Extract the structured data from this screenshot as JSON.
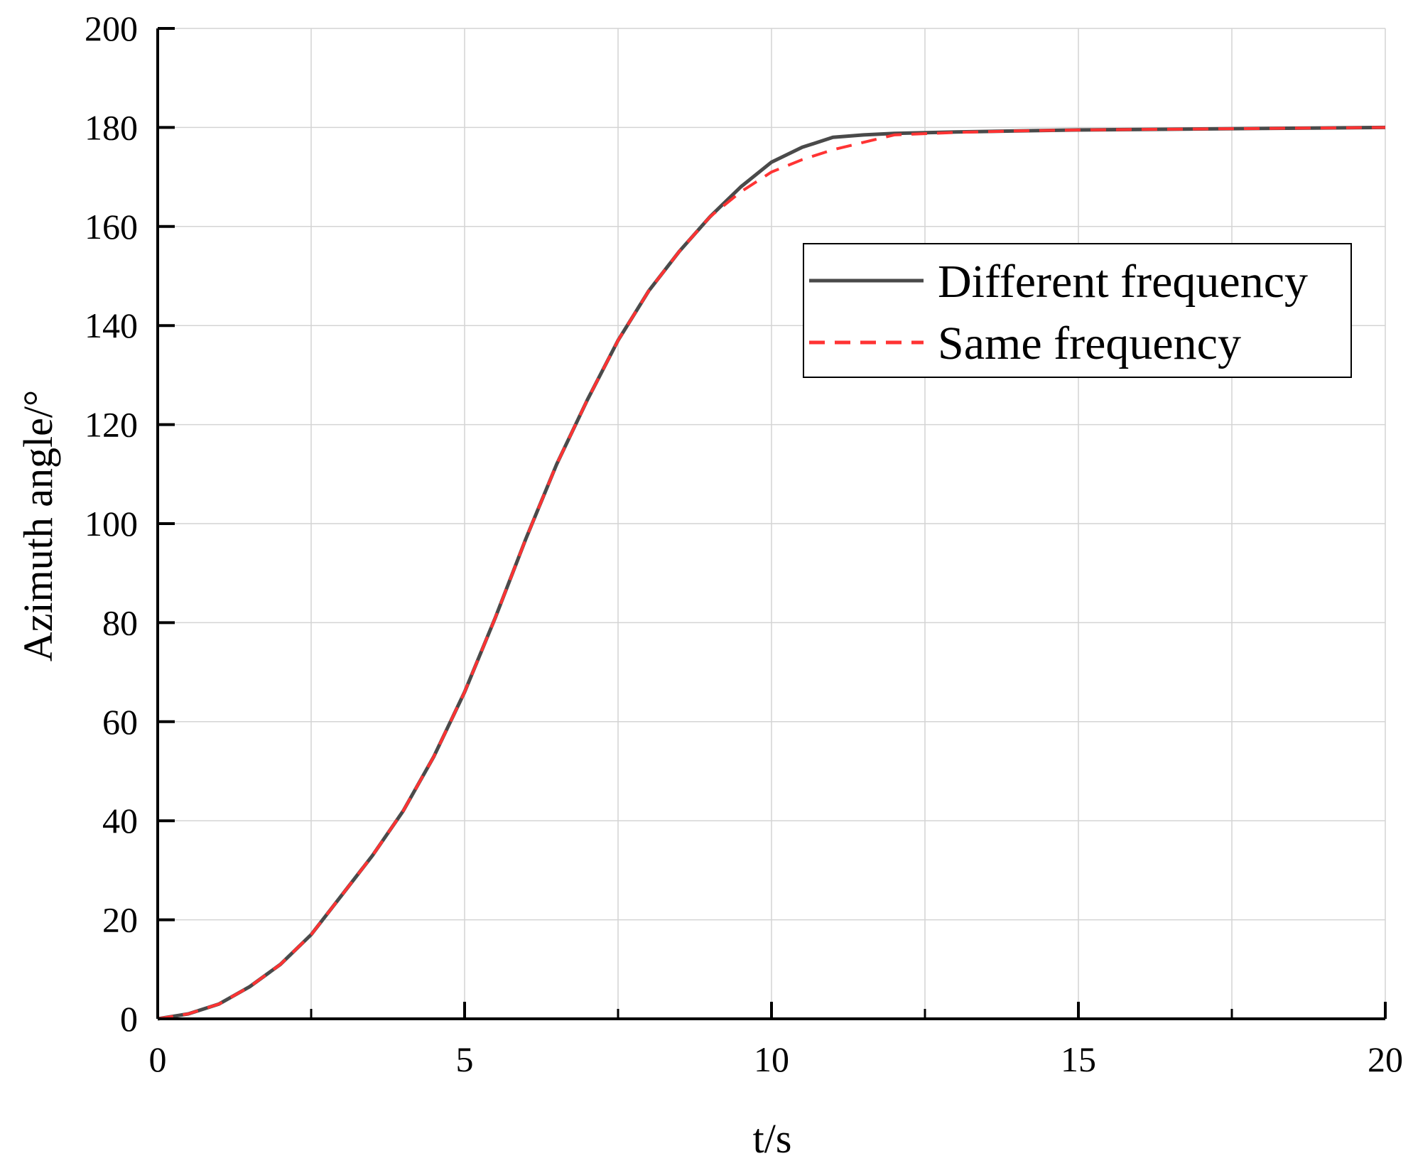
{
  "chart_data": {
    "type": "line",
    "xlabel": "t/s",
    "ylabel": "Azimuth angle/°",
    "xlim": [
      0,
      20
    ],
    "ylim": [
      0,
      200
    ],
    "x_ticks": [
      0,
      5,
      10,
      15,
      20
    ],
    "y_ticks": [
      0,
      20,
      40,
      60,
      80,
      100,
      120,
      140,
      160,
      180,
      200
    ],
    "grid": true,
    "legend_position": "top-right",
    "series": [
      {
        "name": "Different frequency",
        "color": "#4a4a4a",
        "dash": "solid",
        "x": [
          0,
          0.5,
          1,
          1.5,
          2,
          2.5,
          3,
          3.5,
          4,
          4.5,
          5,
          5.5,
          6,
          6.5,
          7,
          7.5,
          8,
          8.5,
          9,
          9.5,
          10,
          10.5,
          11,
          11.5,
          12,
          13,
          14,
          15,
          16,
          17,
          18,
          19,
          20
        ],
        "y": [
          0,
          1,
          3,
          6.5,
          11,
          17,
          25,
          33,
          42,
          53,
          66,
          81,
          97,
          112,
          125,
          137,
          147,
          155,
          162,
          168,
          173,
          176,
          178,
          178.5,
          178.8,
          179.1,
          179.3,
          179.5,
          179.6,
          179.7,
          179.8,
          179.9,
          180
        ]
      },
      {
        "name": "Same frequency",
        "color": "#ff3333",
        "dash": "dashed",
        "x": [
          0,
          0.5,
          1,
          1.5,
          2,
          2.5,
          3,
          3.5,
          4,
          4.5,
          5,
          5.5,
          6,
          6.5,
          7,
          7.5,
          8,
          8.5,
          9,
          9.5,
          10,
          10.5,
          11,
          11.5,
          12,
          13,
          14,
          15,
          16,
          17,
          18,
          19,
          20
        ],
        "y": [
          0,
          1,
          3,
          6.5,
          11,
          17,
          25,
          33,
          42,
          53,
          66,
          81,
          97,
          112,
          125,
          137,
          147,
          155,
          162,
          167,
          171,
          173.5,
          175.5,
          177,
          178.5,
          179,
          179.3,
          179.5,
          179.6,
          179.7,
          179.8,
          179.9,
          180
        ]
      }
    ]
  }
}
